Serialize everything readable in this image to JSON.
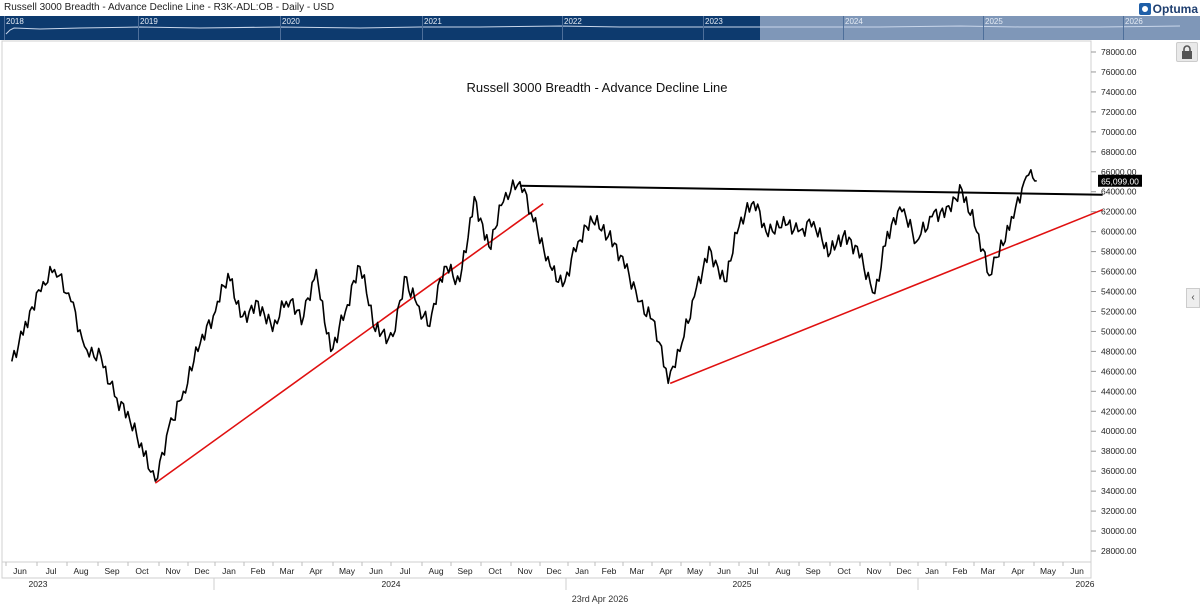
{
  "header": {
    "title": "Russell 3000 Breadth - Advance Decline Line - R3K-ADL:OB - Daily - USD",
    "logo": "Optuma"
  },
  "navigator": {
    "years": [
      "2018",
      "2019",
      "2020",
      "2021",
      "2022",
      "2023",
      "2024",
      "2025",
      "2026"
    ]
  },
  "footer": {
    "date": "23rd Apr 2026"
  },
  "chart_data": {
    "type": "line",
    "title": "Russell 3000 Breadth - Advance Decline Line",
    "xlabel": "",
    "ylabel": "",
    "ylim": [
      27000,
      79000
    ],
    "y_ticks": [
      "28000.00",
      "30000.00",
      "32000.00",
      "34000.00",
      "36000.00",
      "38000.00",
      "40000.00",
      "42000.00",
      "44000.00",
      "46000.00",
      "48000.00",
      "50000.00",
      "52000.00",
      "54000.00",
      "56000.00",
      "58000.00",
      "60000.00",
      "62000.00",
      "64000.00",
      "66000.00",
      "68000.00",
      "70000.00",
      "72000.00",
      "74000.00",
      "76000.00",
      "78000.00"
    ],
    "x_months": [
      "Jun",
      "Jul",
      "Aug",
      "Sep",
      "Oct",
      "Nov",
      "Dec",
      "Jan",
      "Feb",
      "Mar",
      "Apr",
      "May",
      "Jun",
      "Jul",
      "Aug",
      "Sep",
      "Oct",
      "Nov",
      "Dec",
      "Jan",
      "Feb",
      "Mar",
      "Apr",
      "May",
      "Jun",
      "Jul",
      "Aug",
      "Sep",
      "Oct",
      "Nov",
      "Dec",
      "Jan",
      "Feb",
      "Mar",
      "Apr",
      "May",
      "Jun"
    ],
    "x_years": [
      "2023",
      "2024",
      "2025",
      "2026"
    ],
    "last_value_label": "65,099.00",
    "grid": false,
    "series": [
      {
        "color": "#000000",
        "points": [
          [
            "2023-06-01",
            47000
          ],
          [
            "2023-06-15",
            51000
          ],
          [
            "2023-07-01",
            54000
          ],
          [
            "2023-07-15",
            56200
          ],
          [
            "2023-08-01",
            53000
          ],
          [
            "2023-08-15",
            48500
          ],
          [
            "2023-09-01",
            47500
          ],
          [
            "2023-09-15",
            43500
          ],
          [
            "2023-10-01",
            41000
          ],
          [
            "2023-10-15",
            37500
          ],
          [
            "2023-10-27",
            35000
          ],
          [
            "2023-11-10",
            40500
          ],
          [
            "2023-11-25",
            44000
          ],
          [
            "2023-12-10",
            48000
          ],
          [
            "2023-12-28",
            52000
          ],
          [
            "2024-01-10",
            55800
          ],
          [
            "2024-01-25",
            51500
          ],
          [
            "2024-02-10",
            53000
          ],
          [
            "2024-02-25",
            50000
          ],
          [
            "2024-03-10",
            53000
          ],
          [
            "2024-03-28",
            51500
          ],
          [
            "2024-04-10",
            56200
          ],
          [
            "2024-04-25",
            48000
          ],
          [
            "2024-05-10",
            52000
          ],
          [
            "2024-05-25",
            56500
          ],
          [
            "2024-06-10",
            50000
          ],
          [
            "2024-06-28",
            49500
          ],
          [
            "2024-07-10",
            55500
          ],
          [
            "2024-07-25",
            52500
          ],
          [
            "2024-08-05",
            50500
          ],
          [
            "2024-08-20",
            56500
          ],
          [
            "2024-09-05",
            55000
          ],
          [
            "2024-09-20",
            63500
          ],
          [
            "2024-10-05",
            58500
          ],
          [
            "2024-10-20",
            63000
          ],
          [
            "2024-11-06",
            65000
          ],
          [
            "2024-11-20",
            61000
          ],
          [
            "2024-12-05",
            57500
          ],
          [
            "2024-12-20",
            54500
          ],
          [
            "2025-01-05",
            59000
          ],
          [
            "2025-01-20",
            61000
          ],
          [
            "2025-02-05",
            59500
          ],
          [
            "2025-02-20",
            57500
          ],
          [
            "2025-03-10",
            53000
          ],
          [
            "2025-03-25",
            51000
          ],
          [
            "2025-04-08",
            44800
          ],
          [
            "2025-04-20",
            48000
          ],
          [
            "2025-05-05",
            53500
          ],
          [
            "2025-05-20",
            58500
          ],
          [
            "2025-06-05",
            55000
          ],
          [
            "2025-06-20",
            60500
          ],
          [
            "2025-07-05",
            63000
          ],
          [
            "2025-07-20",
            59500
          ],
          [
            "2025-08-05",
            61500
          ],
          [
            "2025-08-20",
            60000
          ],
          [
            "2025-09-05",
            61000
          ],
          [
            "2025-09-20",
            57500
          ],
          [
            "2025-10-05",
            59500
          ],
          [
            "2025-10-20",
            58500
          ],
          [
            "2025-11-07",
            53800
          ],
          [
            "2025-11-20",
            60000
          ],
          [
            "2025-12-05",
            62000
          ],
          [
            "2025-12-20",
            59000
          ],
          [
            "2026-01-05",
            61500
          ],
          [
            "2026-01-20",
            62500
          ],
          [
            "2026-02-05",
            64200
          ],
          [
            "2026-02-20",
            60000
          ],
          [
            "2026-03-05",
            55600
          ],
          [
            "2026-03-15",
            57500
          ],
          [
            "2026-03-28",
            61500
          ],
          [
            "2026-04-10",
            65000
          ],
          [
            "2026-04-17",
            66200
          ],
          [
            "2026-04-23",
            65099
          ]
        ]
      },
      {
        "color": "#e01010",
        "points": [
          [
            "2023-10-27",
            34800
          ],
          [
            "2024-11-30",
            62800
          ]
        ]
      },
      {
        "color": "#e01010",
        "points": [
          [
            "2025-04-10",
            44800
          ],
          [
            "2026-06-30",
            62200
          ]
        ]
      },
      {
        "color": "#000000",
        "points": [
          [
            "2024-11-06",
            64600
          ],
          [
            "2026-06-30",
            63700
          ]
        ]
      }
    ]
  }
}
